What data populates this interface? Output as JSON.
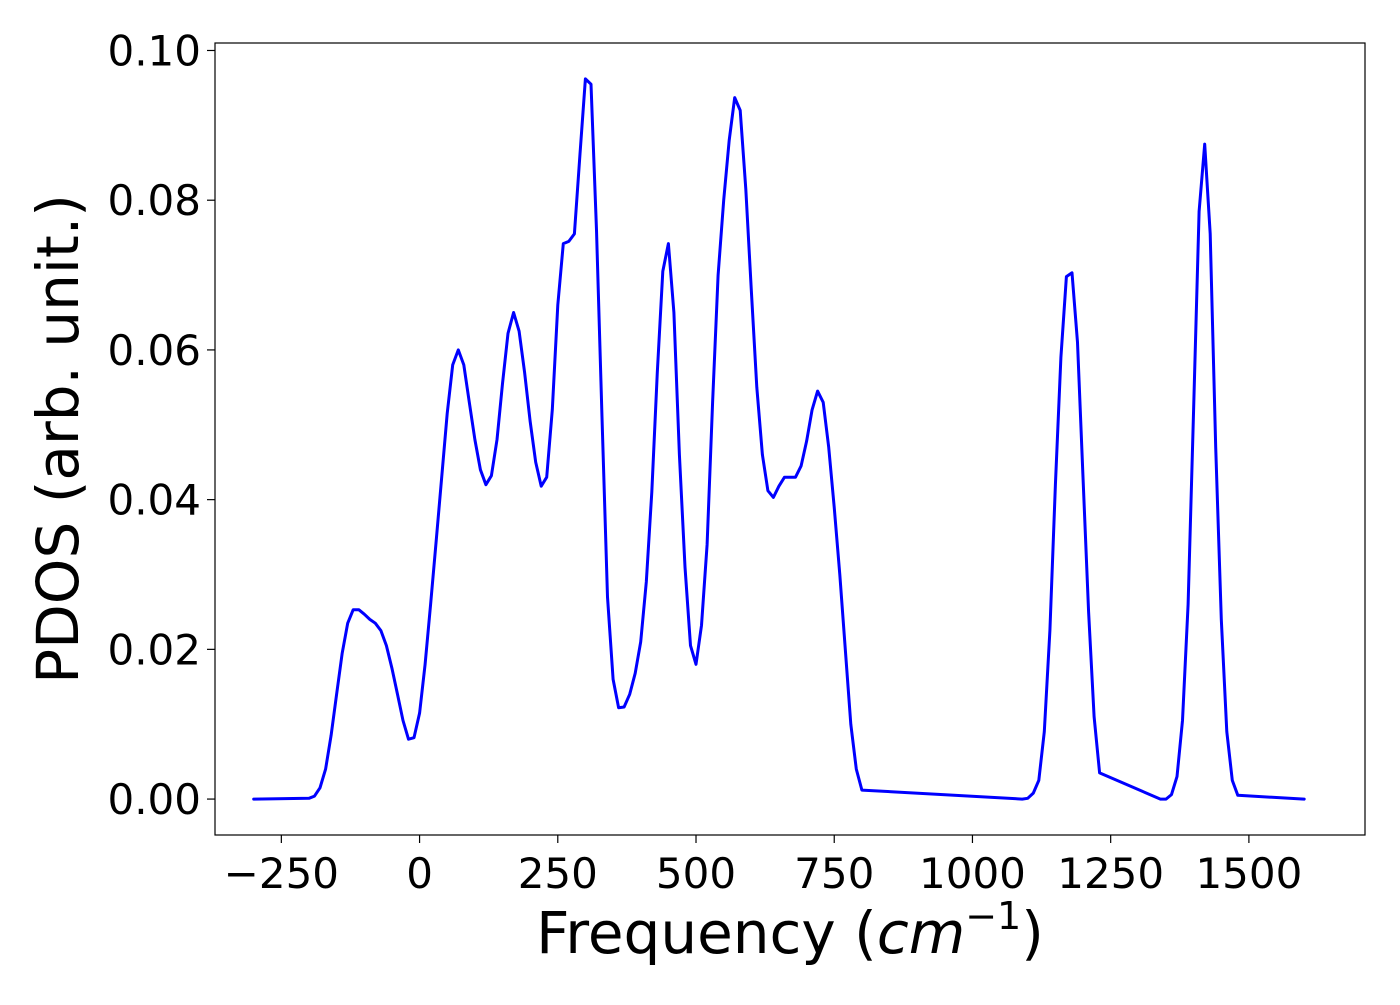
{
  "chart_data": {
    "type": "line",
    "xlabel_prefix": "Frequency (",
    "xlabel_unit_base": "cm",
    "xlabel_unit_exp": "−1",
    "xlabel_suffix": ")",
    "ylabel": "PDOS (arb. unit.)",
    "xlim": [
      -370,
      1710
    ],
    "ylim": [
      -0.0048,
      0.101
    ],
    "xticks": [
      -250,
      0,
      250,
      500,
      750,
      1000,
      1250,
      1500
    ],
    "xtick_labels": [
      "−250",
      "0",
      "250",
      "500",
      "750",
      "1000",
      "1250",
      "1500"
    ],
    "yticks": [
      0.0,
      0.02,
      0.04,
      0.06,
      0.08,
      0.1
    ],
    "ytick_labels": [
      "0.00",
      "0.02",
      "0.04",
      "0.06",
      "0.08",
      "0.10"
    ],
    "grid": false,
    "legend": "none",
    "series_color": "#0000ff",
    "series": [
      {
        "x": [
          -300,
          -200,
          -190,
          -180,
          -170,
          -160,
          -150,
          -140,
          -130,
          -120,
          -110,
          -100,
          -90,
          -80,
          -70,
          -60,
          -50,
          -40,
          -30,
          -20,
          -10,
          0,
          10,
          20,
          30,
          40,
          50,
          60,
          70,
          80,
          90,
          100,
          110,
          120,
          130,
          140,
          150,
          160,
          170,
          180,
          190,
          200,
          210,
          220,
          230,
          240,
          250,
          260,
          270,
          280,
          290,
          300,
          310,
          320,
          330,
          340,
          350,
          360,
          370,
          380,
          390,
          400,
          410,
          420,
          430,
          440,
          450,
          460,
          470,
          480,
          490,
          500,
          510,
          520,
          530,
          540,
          550,
          560,
          570,
          580,
          590,
          600,
          610,
          620,
          630,
          640,
          650,
          660,
          670,
          680,
          690,
          700,
          710,
          720,
          730,
          740,
          750,
          760,
          770,
          780,
          790,
          800,
          1090,
          1100,
          1110,
          1120,
          1130,
          1140,
          1150,
          1160,
          1170,
          1180,
          1190,
          1200,
          1210,
          1220,
          1230,
          1340,
          1350,
          1360,
          1370,
          1380,
          1390,
          1400,
          1410,
          1420,
          1430,
          1440,
          1450,
          1460,
          1470,
          1480,
          1600
        ],
        "y": [
          0.0,
          0.0001,
          0.0004,
          0.0015,
          0.004,
          0.0085,
          0.014,
          0.0195,
          0.0235,
          0.0253,
          0.0253,
          0.0247,
          0.024,
          0.0235,
          0.0225,
          0.0205,
          0.0175,
          0.014,
          0.0105,
          0.008,
          0.0082,
          0.0115,
          0.018,
          0.026,
          0.0345,
          0.043,
          0.0515,
          0.058,
          0.06,
          0.058,
          0.053,
          0.048,
          0.044,
          0.042,
          0.0432,
          0.048,
          0.0555,
          0.0622,
          0.065,
          0.0625,
          0.057,
          0.0505,
          0.045,
          0.0418,
          0.043,
          0.052,
          0.066,
          0.0742,
          0.0745,
          0.0755,
          0.086,
          0.0962,
          0.0955,
          0.076,
          0.051,
          0.027,
          0.016,
          0.0122,
          0.0123,
          0.014,
          0.0168,
          0.021,
          0.029,
          0.041,
          0.057,
          0.0705,
          0.0742,
          0.065,
          0.046,
          0.031,
          0.0205,
          0.018,
          0.0232,
          0.034,
          0.053,
          0.07,
          0.08,
          0.088,
          0.0937,
          0.092,
          0.0815,
          0.068,
          0.055,
          0.046,
          0.0412,
          0.0403,
          0.0418,
          0.043,
          0.043,
          0.043,
          0.0445,
          0.0478,
          0.052,
          0.0545,
          0.053,
          0.047,
          0.039,
          0.03,
          0.02,
          0.01,
          0.004,
          0.0012,
          0.0,
          0.0001,
          0.0008,
          0.0025,
          0.009,
          0.0225,
          0.042,
          0.059,
          0.0698,
          0.0703,
          0.061,
          0.043,
          0.025,
          0.011,
          0.0035,
          0.0,
          0.0,
          0.0006,
          0.003,
          0.0105,
          0.026,
          0.052,
          0.0785,
          0.0875,
          0.0755,
          0.047,
          0.024,
          0.009,
          0.0025,
          0.0005,
          0.0
        ]
      }
    ]
  }
}
